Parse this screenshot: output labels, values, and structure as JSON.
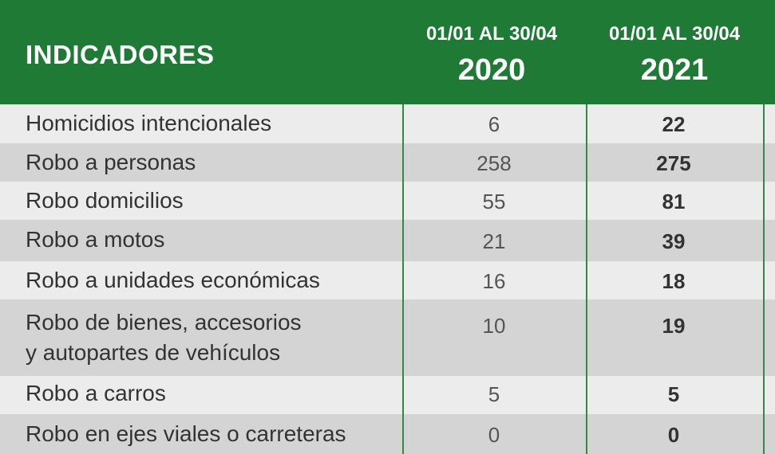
{
  "header": {
    "indicators_label": "INDICADORES",
    "col_2020_range": "01/01 AL 30/04",
    "col_2020_year": "2020",
    "col_2021_range": "01/01 AL 30/04",
    "col_2021_year": "2021"
  },
  "rows": [
    {
      "label": "Homicidios intencionales",
      "v2020": "6",
      "v2021": "22"
    },
    {
      "label": "Robo a personas",
      "v2020": "258",
      "v2021": "275"
    },
    {
      "label": "Robo domicilios",
      "v2020": "55",
      "v2021": "81"
    },
    {
      "label": "Robo a motos",
      "v2020": "21",
      "v2021": "39"
    },
    {
      "label": "Robo a unidades económicas",
      "v2020": "16",
      "v2021": "18"
    },
    {
      "label": "Robo de bienes, accesorios\ny autopartes de vehículos",
      "v2020": "10",
      "v2021": "19"
    },
    {
      "label": "Robo a carros",
      "v2020": "5",
      "v2021": "5"
    },
    {
      "label": "Robo en ejes viales o carreteras",
      "v2020": "0",
      "v2021": "0"
    }
  ],
  "colors": {
    "header_bg": "#1f7a35",
    "row_light": "#ececec",
    "row_dark": "#d4d4d4",
    "divider": "#2e8a45"
  }
}
